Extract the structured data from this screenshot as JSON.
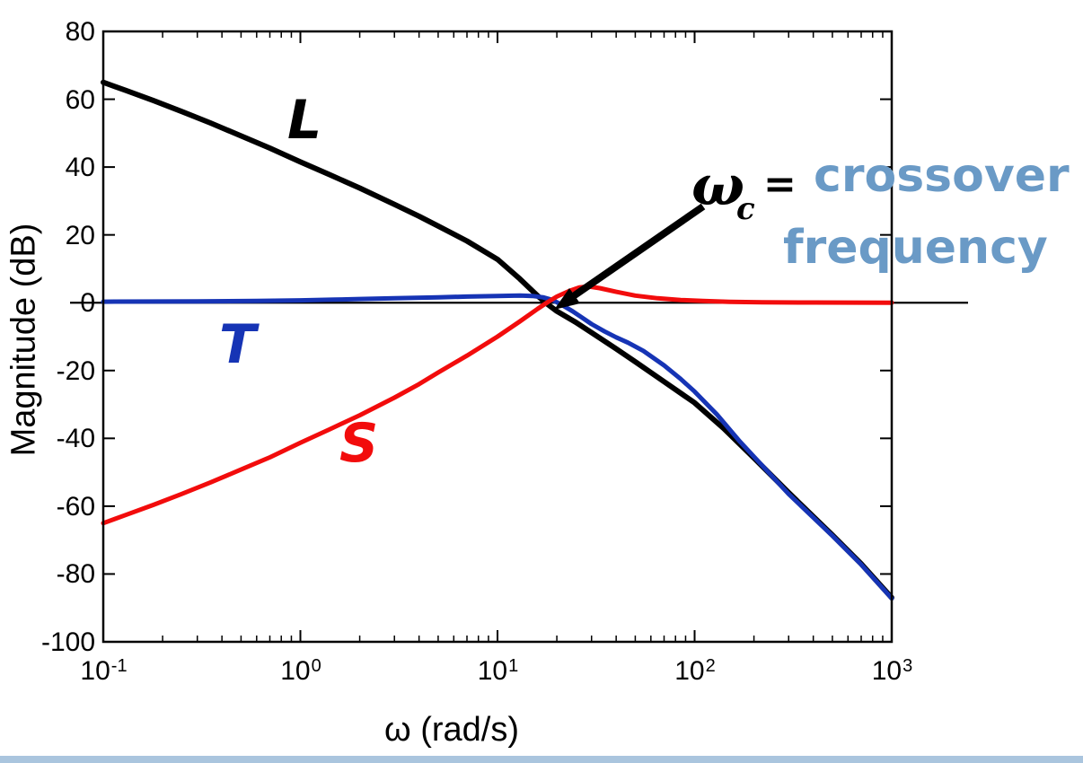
{
  "figure": {
    "ylabel": "Magnitude (dB)",
    "xlabel": "ω (rad/s)"
  },
  "curve_labels": {
    "L": "L",
    "T": "T",
    "S": "S"
  },
  "annotation": {
    "omega": "ω",
    "subscript": "c",
    "equals": "=",
    "line1": "crossover",
    "line2": "frequency"
  },
  "colors": {
    "L_curve": "#000000",
    "T_curve": "#1634b5",
    "S_curve": "#f20c0c",
    "annotation_text": "#6a9ac6",
    "footer_bar": "#aac5de",
    "axis": "#000000"
  },
  "chart_data": {
    "type": "line",
    "x_scale": "log",
    "title": "",
    "xlabel": "ω (rad/s)",
    "ylabel": "Magnitude (dB)",
    "xlim": [
      0.1,
      1000
    ],
    "ylim": [
      -100,
      80
    ],
    "ytick_values": [
      80,
      60,
      40,
      20,
      0,
      -20,
      -40,
      -60,
      -80,
      -100
    ],
    "ytick_labels": [
      "80",
      "60",
      "40",
      "20",
      "0",
      "-20",
      "-40",
      "-60",
      "-80",
      "-100"
    ],
    "xtick_exponents": [
      "-1",
      "0",
      "1",
      "2",
      "3"
    ],
    "grid": false,
    "legend_position": "none",
    "zero_db_reference_line": true,
    "annotations": {
      "crossover_frequency_rad_s": 17,
      "crossover_magnitude_db": 0,
      "text": "ωc = crossover frequency"
    },
    "series": [
      {
        "name": "L",
        "color": "#000000",
        "width": 6,
        "points": [
          [
            0.1,
            65
          ],
          [
            0.13,
            62.6
          ],
          [
            0.18,
            59.6
          ],
          [
            0.25,
            56.4
          ],
          [
            0.35,
            53
          ],
          [
            0.5,
            49.2
          ],
          [
            0.7,
            45.6
          ],
          [
            1,
            41.5
          ],
          [
            1.4,
            37.8
          ],
          [
            2,
            33.8
          ],
          [
            3,
            29
          ],
          [
            4,
            25.5
          ],
          [
            5,
            22.6
          ],
          [
            7,
            18.2
          ],
          [
            10,
            12.8
          ],
          [
            13,
            7
          ],
          [
            16,
            2
          ],
          [
            18,
            -0.5
          ],
          [
            20,
            -2.5
          ],
          [
            25,
            -5.8
          ],
          [
            30,
            -8.8
          ],
          [
            40,
            -13.6
          ],
          [
            50,
            -17.4
          ],
          [
            70,
            -23.3
          ],
          [
            100,
            -29.5
          ],
          [
            140,
            -37
          ],
          [
            200,
            -45.8
          ],
          [
            300,
            -56
          ],
          [
            500,
            -68.5
          ],
          [
            700,
            -77
          ],
          [
            1000,
            -87
          ]
        ]
      },
      {
        "name": "T",
        "color": "#1634b5",
        "width": 5,
        "points": [
          [
            0.1,
            0.3
          ],
          [
            0.3,
            0.4
          ],
          [
            0.6,
            0.5
          ],
          [
            1,
            0.7
          ],
          [
            1.5,
            0.9
          ],
          [
            2,
            1.1
          ],
          [
            3,
            1.3
          ],
          [
            5,
            1.6
          ],
          [
            7,
            1.8
          ],
          [
            10,
            2
          ],
          [
            13,
            2.1
          ],
          [
            15,
            2
          ],
          [
            17,
            1.6
          ],
          [
            19,
            0.8
          ],
          [
            21,
            -0.5
          ],
          [
            24,
            -2.5
          ],
          [
            27,
            -4.5
          ],
          [
            30,
            -6.3
          ],
          [
            35,
            -8.5
          ],
          [
            40,
            -10.2
          ],
          [
            46,
            -11.8
          ],
          [
            55,
            -14.2
          ],
          [
            70,
            -18.5
          ],
          [
            85,
            -22.5
          ],
          [
            100,
            -26.2
          ],
          [
            130,
            -33
          ],
          [
            170,
            -41
          ],
          [
            220,
            -48
          ],
          [
            300,
            -56.4
          ],
          [
            500,
            -68.7
          ],
          [
            700,
            -77.2
          ],
          [
            1000,
            -87.2
          ]
        ]
      },
      {
        "name": "S",
        "color": "#f20c0c",
        "width": 5,
        "points": [
          [
            0.1,
            -65
          ],
          [
            0.13,
            -62.6
          ],
          [
            0.18,
            -59.6
          ],
          [
            0.25,
            -56.4
          ],
          [
            0.35,
            -53
          ],
          [
            0.5,
            -49.2
          ],
          [
            0.7,
            -45.6
          ],
          [
            1,
            -41.3
          ],
          [
            1.4,
            -37.4
          ],
          [
            2,
            -33.2
          ],
          [
            3,
            -28
          ],
          [
            4,
            -24
          ],
          [
            5,
            -20.6
          ],
          [
            7,
            -15.6
          ],
          [
            10,
            -10
          ],
          [
            13,
            -5.5
          ],
          [
            16,
            -1.8
          ],
          [
            18,
            0.2
          ],
          [
            20,
            1.8
          ],
          [
            23,
            3.4
          ],
          [
            26,
            4.5
          ],
          [
            29,
            4.8
          ],
          [
            33,
            4.3
          ],
          [
            40,
            3.2
          ],
          [
            50,
            2.1
          ],
          [
            65,
            1.3
          ],
          [
            85,
            0.8
          ],
          [
            110,
            0.5
          ],
          [
            150,
            0.25
          ],
          [
            220,
            0.1
          ],
          [
            400,
            0.05
          ],
          [
            1000,
            0
          ]
        ]
      }
    ]
  }
}
